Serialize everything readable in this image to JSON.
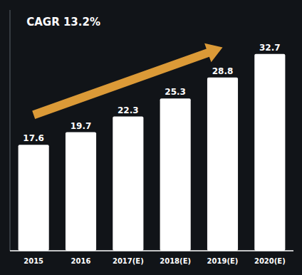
{
  "chart_data": {
    "type": "bar",
    "categories": [
      "2015",
      "2016",
      "2017(E)",
      "2018(E)",
      "2019(E)",
      "2020(E)"
    ],
    "values": [
      17.6,
      19.7,
      22.3,
      25.3,
      28.8,
      32.7
    ],
    "color": "#ffffff",
    "ylim": [
      0,
      40
    ],
    "tick_labels": "x",
    "data_labels": true,
    "annotation": "CAGR 13.2%"
  }
}
